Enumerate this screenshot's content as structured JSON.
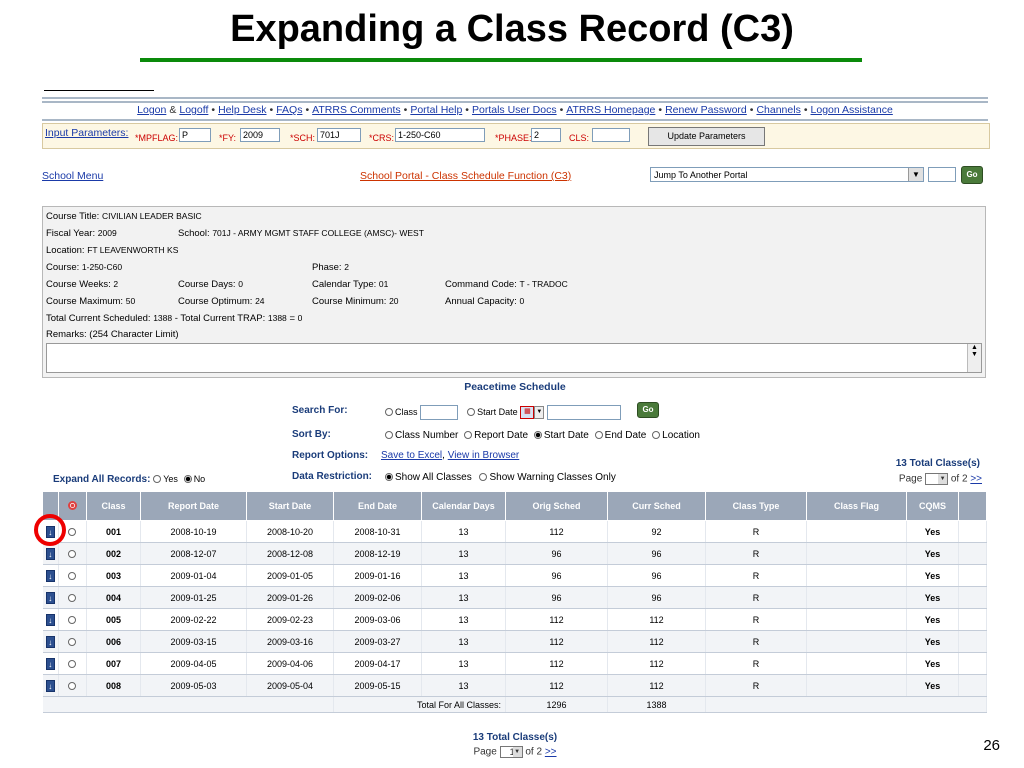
{
  "slide": {
    "title": "Expanding a Class Record (C3)",
    "number": "26"
  },
  "nav_links": [
    "Logon",
    "Logoff",
    "Help Desk",
    "FAQs",
    "ATRRS Comments",
    "Portal Help",
    "Portals User Docs",
    "ATRRS Homepage",
    "Renew Password",
    "Channels",
    "Logon Assistance"
  ],
  "nav_ampersand": "&",
  "params": {
    "label": "Input Parameters:",
    "mpflag_label": "*MPFLAG:",
    "mpflag": "P",
    "fy_label": "*FY:",
    "fy": "2009",
    "sch_label": "*SCH:",
    "sch": "701J",
    "crs_label": "*CRS:",
    "crs": "1-250-C60",
    "phase_label": "*PHASE:",
    "phase": "2",
    "cls_label": "CLS:",
    "cls": "",
    "update_button": "Update Parameters"
  },
  "school_menu": "School Menu",
  "portal_title": "School Portal - Class Schedule Function (C3)",
  "jump_select": "Jump To Another Portal",
  "go_label": "Go",
  "course": {
    "title_label": "Course Title:",
    "title": "CIVILIAN LEADER BASIC",
    "fy_label": "Fiscal Year:",
    "fy": "2009",
    "school_label": "School:",
    "school": "701J - ARMY MGMT STAFF COLLEGE (AMSC)- WEST",
    "location_label": "Location:",
    "location": "FT LEAVENWORTH KS",
    "course_label": "Course:",
    "course": "1-250-C60",
    "phase_label": "Phase:",
    "phase": "2",
    "weeks_label": "Course Weeks:",
    "weeks": "2",
    "days_label": "Course Days:",
    "days": "0",
    "caltype_label": "Calendar Type:",
    "caltype": "01",
    "cmd_label": "Command Code:",
    "cmd": "T - TRADOC",
    "max_label": "Course Maximum:",
    "max": "50",
    "opt_label": "Course Optimum:",
    "opt": "24",
    "min_label": "Course Minimum:",
    "min": "20",
    "cap_label": "Annual Capacity:",
    "cap": "0",
    "sched_label": "Total Current Scheduled:",
    "sched": "1388",
    "dash": "-",
    "trap_label": "Total Current TRAP:",
    "trap": "1388",
    "eq": "=",
    "diff": "0",
    "remarks_label": "Remarks: (254 Character Limit)"
  },
  "schedule": {
    "heading": "Peacetime Schedule",
    "search_label": "Search For:",
    "search_class": "Class",
    "search_start": "Start Date",
    "sort_label": "Sort By:",
    "sort_options": [
      "Class Number",
      "Report Date",
      "Start Date",
      "End Date",
      "Location"
    ],
    "report_label": "Report Options:",
    "save_excel": "Save to Excel",
    "view_browser": "View in Browser",
    "restrict_label": "Data Restriction:",
    "restrict_options": [
      "Show All Classes",
      "Show Warning Classes Only"
    ],
    "expand_label": "Expand All Records:",
    "expand_yes": "Yes",
    "expand_no": "No",
    "total_classes": "13 Total Classe(s)",
    "page_label": "Page",
    "page_value": "1",
    "of_label": "of 2",
    "next": ">>"
  },
  "table": {
    "headers": [
      "Class",
      "Report Date",
      "Start Date",
      "End Date",
      "Calendar Days",
      "Orig Sched",
      "Curr Sched",
      "Class Type",
      "Class Flag",
      "CQMS"
    ],
    "rows": [
      [
        "001",
        "2008-10-19",
        "2008-10-20",
        "2008-10-31",
        "13",
        "112",
        "92",
        "R",
        "",
        "Yes"
      ],
      [
        "002",
        "2008-12-07",
        "2008-12-08",
        "2008-12-19",
        "13",
        "96",
        "96",
        "R",
        "",
        "Yes"
      ],
      [
        "003",
        "2009-01-04",
        "2009-01-05",
        "2009-01-16",
        "13",
        "96",
        "96",
        "R",
        "",
        "Yes"
      ],
      [
        "004",
        "2009-01-25",
        "2009-01-26",
        "2009-02-06",
        "13",
        "96",
        "96",
        "R",
        "",
        "Yes"
      ],
      [
        "005",
        "2009-02-22",
        "2009-02-23",
        "2009-03-06",
        "13",
        "112",
        "112",
        "R",
        "",
        "Yes"
      ],
      [
        "006",
        "2009-03-15",
        "2009-03-16",
        "2009-03-27",
        "13",
        "112",
        "112",
        "R",
        "",
        "Yes"
      ],
      [
        "007",
        "2009-04-05",
        "2009-04-06",
        "2009-04-17",
        "13",
        "112",
        "112",
        "R",
        "",
        "Yes"
      ],
      [
        "008",
        "2009-05-03",
        "2009-05-04",
        "2009-05-15",
        "13",
        "112",
        "112",
        "R",
        "",
        "Yes"
      ]
    ],
    "total_label": "Total For All Classes:",
    "total_orig": "1296",
    "total_curr": "1388"
  }
}
